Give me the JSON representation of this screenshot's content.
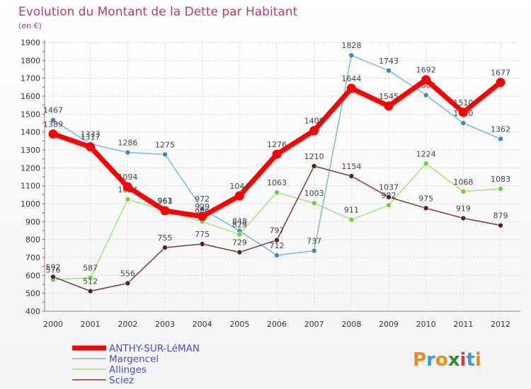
{
  "chart_data": {
    "type": "line",
    "title": "Evolution du Montant de la Dette par Habitant",
    "subtitle": "(en €)",
    "xlabel": "",
    "ylabel": "",
    "x": [
      "2000",
      "2001",
      "2002",
      "2003",
      "2004",
      "2005",
      "2006",
      "2007",
      "2008",
      "2009",
      "2010",
      "2011",
      "2012"
    ],
    "ylim": [
      400,
      1900
    ],
    "yticks": [
      400,
      500,
      600,
      700,
      800,
      900,
      1000,
      1100,
      1200,
      1300,
      1400,
      1500,
      1600,
      1700,
      1800,
      1900
    ],
    "grid": true,
    "legend_position": "bottom-left",
    "series": [
      {
        "name": "ANTHY-SUR-LéMAN",
        "color": "#ff0000",
        "emphasis": true,
        "values": [
          1389,
          1317,
          1094,
          961,
          929,
          1044,
          1276,
          1408,
          1644,
          1545,
          1692,
          1510,
          1677
        ]
      },
      {
        "name": "Margencel",
        "color": "#7fb5da",
        "marker": "#3d85c6",
        "values": [
          1467,
          1333,
          1286,
          1275,
          972,
          848,
          712,
          737,
          1828,
          1743,
          1606,
          1450,
          1362
        ]
      },
      {
        "name": "Allinges",
        "color": "#a6e27a",
        "marker": "#6bd13a",
        "values": [
          576,
          587,
          1024,
          963,
          900,
          829,
          1063,
          1003,
          911,
          992,
          1224,
          1068,
          1083
        ]
      },
      {
        "name": "Sciez",
        "color": "#7a3838",
        "marker": "#5a1f1f",
        "values": [
          592,
          512,
          556,
          755,
          775,
          729,
          797,
          1210,
          1154,
          1037,
          975,
          919,
          879
        ]
      }
    ]
  },
  "logo": {
    "text": "Proxiti"
  }
}
